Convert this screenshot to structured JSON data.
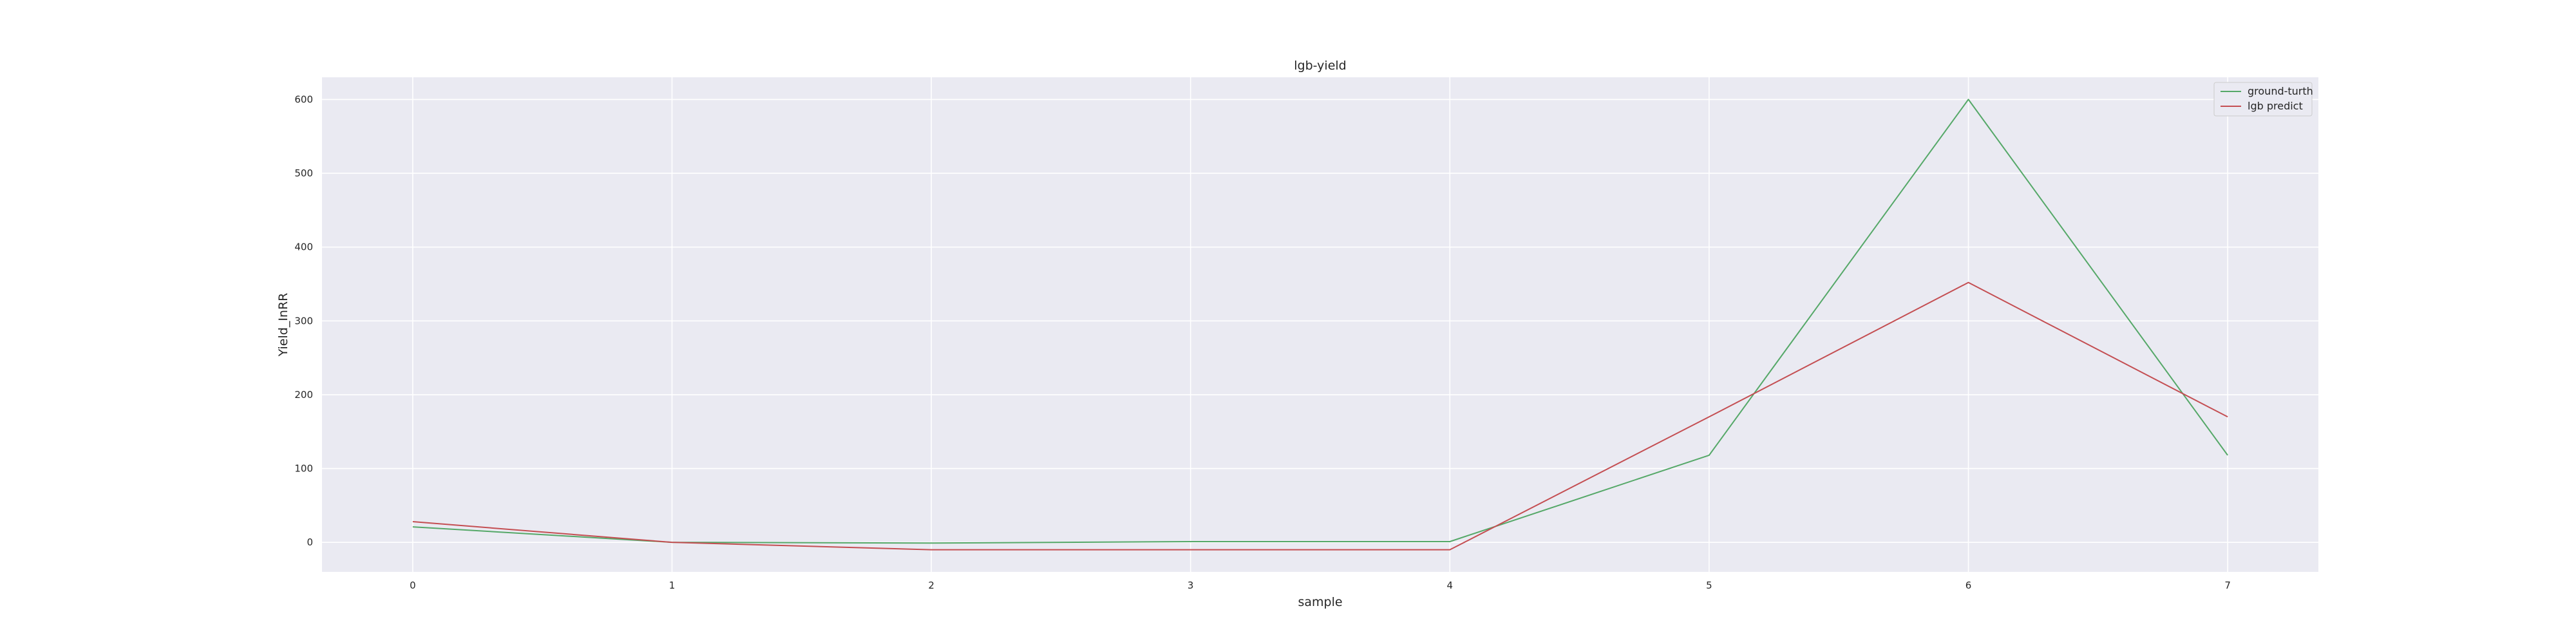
{
  "chart_data": {
    "type": "line",
    "title": "lgb-yield",
    "xlabel": "sample",
    "ylabel": "Yield_InRR",
    "x": [
      0,
      1,
      2,
      3,
      4,
      5,
      6,
      7
    ],
    "x_ticks": [
      "0",
      "1",
      "2",
      "3",
      "4",
      "5",
      "6",
      "7"
    ],
    "y_ticks": [
      "0",
      "100",
      "200",
      "300",
      "400",
      "500",
      "600"
    ],
    "xlim": [
      -0.35,
      7.35
    ],
    "ylim": [
      -40,
      630
    ],
    "grid": true,
    "legend_position": "top-right",
    "series": [
      {
        "name": "ground-turth",
        "color": "#55a868",
        "values": [
          21,
          0,
          -1,
          1,
          1,
          118,
          600,
          118
        ]
      },
      {
        "name": "lgb predict",
        "color": "#c44e52",
        "values": [
          28,
          0,
          -10,
          -10,
          -10,
          170,
          352,
          170
        ]
      }
    ]
  },
  "colors": {
    "plot_background": "#eaeaf2",
    "grid": "#ffffff"
  }
}
